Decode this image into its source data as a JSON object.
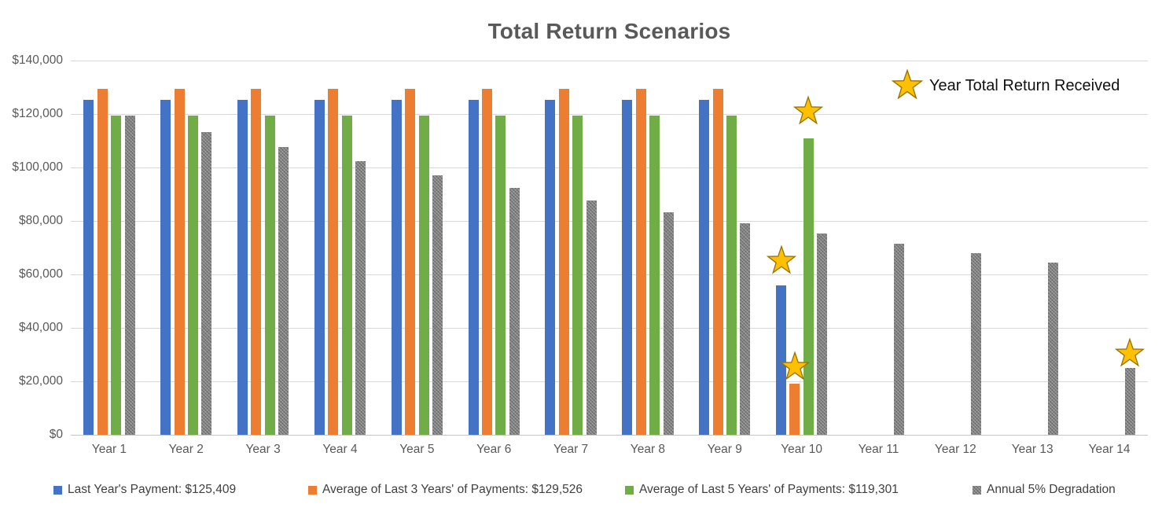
{
  "title": "Total Return Scenarios",
  "marker_legend": {
    "label": "Year Total Return Received"
  },
  "colors": {
    "blue": "#4472C4",
    "orange": "#ED7D31",
    "green": "#70AD47",
    "gray": "#7F7F7F",
    "gridline": "#D9D9D9",
    "axis_text": "#595959",
    "title_text": "#595959",
    "star_fill": "#FFC000",
    "star_stroke": "#997300"
  },
  "chart_data": {
    "type": "bar",
    "title": "Total Return Scenarios",
    "categories": [
      "Year 1",
      "Year 2",
      "Year 3",
      "Year 4",
      "Year 5",
      "Year 6",
      "Year 7",
      "Year 8",
      "Year 9",
      "Year 10",
      "Year 11",
      "Year 12",
      "Year 13",
      "Year 14"
    ],
    "ylim": [
      0,
      140000
    ],
    "y_tick_step": 20000,
    "y_tick_labels": [
      "$0",
      "$20,000",
      "$40,000",
      "$60,000",
      "$80,000",
      "$100,000",
      "$120,000",
      "$140,000"
    ],
    "grid": true,
    "legend_position": "bottom",
    "series": [
      {
        "name": "Last Year's Payment: $125,409",
        "color": "#4472C4",
        "pattern": false,
        "values": [
          125409,
          125409,
          125409,
          125409,
          125409,
          125409,
          125409,
          125409,
          125409,
          56000,
          null,
          null,
          null,
          null
        ]
      },
      {
        "name": "Average of Last 3 Years' of Payments: $129,526",
        "color": "#ED7D31",
        "pattern": false,
        "values": [
          129526,
          129526,
          129526,
          129526,
          129526,
          129526,
          129526,
          129526,
          129526,
          19000,
          null,
          null,
          null,
          null
        ]
      },
      {
        "name": "Average of Last 5 Years' of Payments: $119,301",
        "color": "#70AD47",
        "pattern": false,
        "values": [
          119301,
          119301,
          119301,
          119301,
          119301,
          119301,
          119301,
          119301,
          119301,
          111000,
          null,
          null,
          null,
          null
        ]
      },
      {
        "name": "Annual 5% Degradation",
        "color": "#7F7F7F",
        "pattern": true,
        "values": [
          119301,
          113336,
          107669,
          102286,
          97171,
          92313,
          87697,
          83312,
          79147,
          75189,
          71430,
          67858,
          64465,
          25000
        ]
      }
    ],
    "markers": {
      "label": "Year Total Return Received",
      "symbol": "star",
      "points": [
        {
          "category": "Year 10",
          "series": "Last Year's Payment: $125,409",
          "series_index": 0,
          "category_index": 9,
          "y_value": 65500
        },
        {
          "category": "Year 10",
          "series": "Average of Last 3 Years' of Payments: $129,526",
          "series_index": 1,
          "category_index": 9,
          "y_value": 26000
        },
        {
          "category": "Year 10",
          "series": "Average of Last 5 Years' of Payments: $119,301",
          "series_index": 2,
          "category_index": 9,
          "y_value": 121500
        },
        {
          "category": "Year 14",
          "series": "Annual 5% Degradation",
          "series_index": 3,
          "category_index": 13,
          "y_value": 31000
        }
      ]
    }
  }
}
